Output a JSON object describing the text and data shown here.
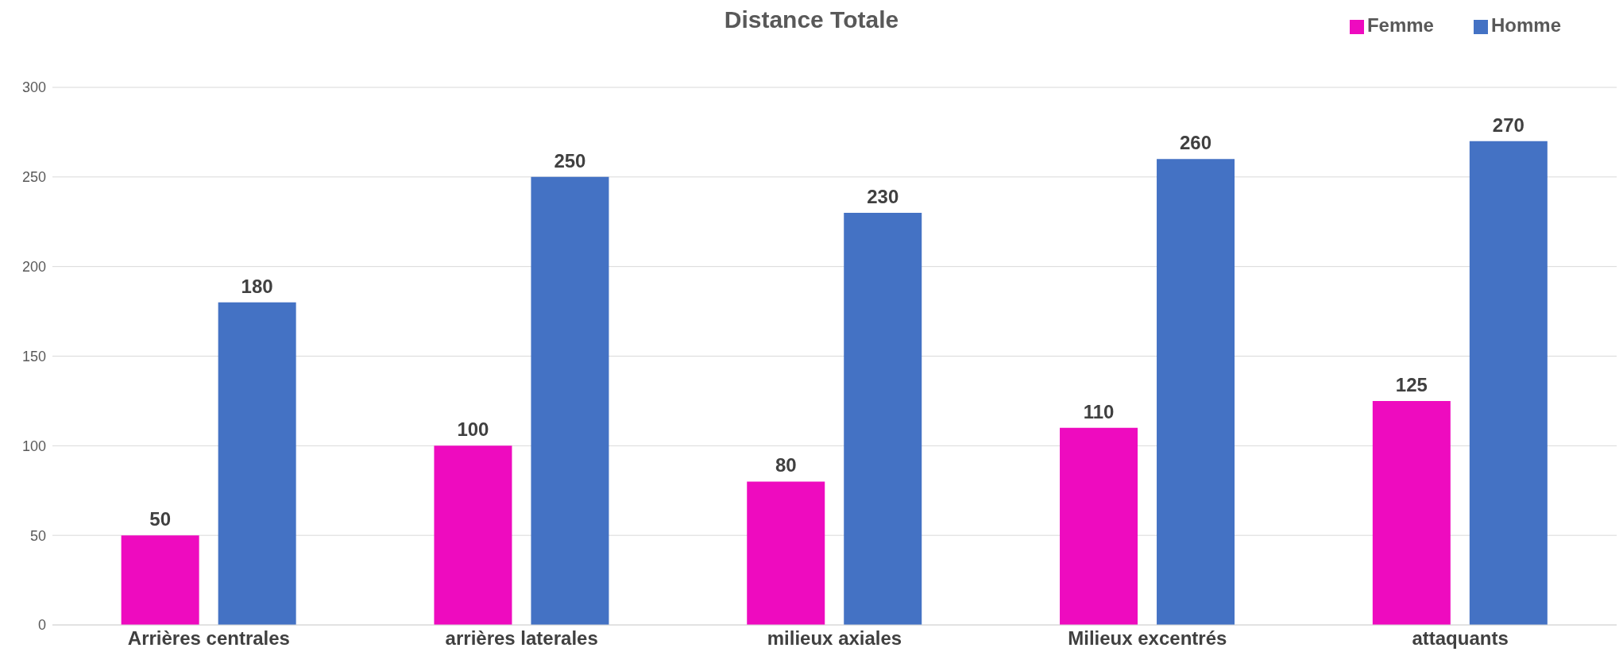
{
  "chart_data": {
    "type": "bar",
    "title": "Distance Totale",
    "categories": [
      "Arrières centrales",
      "arrières laterales",
      "milieux axiales",
      "Milieux excentrés",
      "attaquants"
    ],
    "series": [
      {
        "name": "Femme",
        "color": "#ee0bbf",
        "values": [
          50,
          100,
          80,
          110,
          125
        ]
      },
      {
        "name": "Homme",
        "color": "#4472c4",
        "values": [
          180,
          250,
          230,
          260,
          270
        ]
      }
    ],
    "ylim": [
      0,
      300
    ],
    "yticks": [
      0,
      50,
      100,
      150,
      200,
      250,
      300
    ],
    "grid": "y",
    "legend": "top right",
    "data_labels": true
  }
}
